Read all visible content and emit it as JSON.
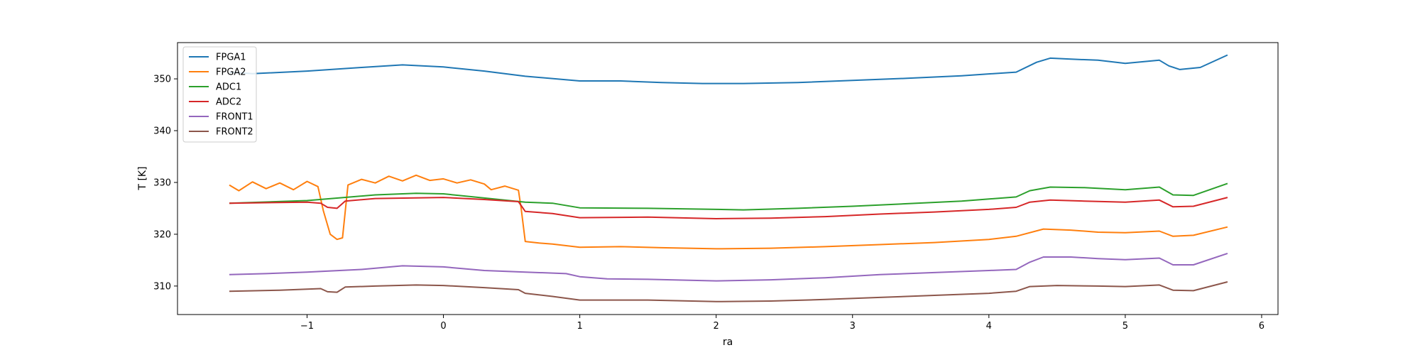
{
  "chart_data": {
    "type": "line",
    "title": "",
    "xlabel": "ra",
    "ylabel": "T [K]",
    "xlim": [
      -1.95,
      6.12
    ],
    "ylim": [
      304.5,
      357.0
    ],
    "xticks": [
      -1,
      0,
      1,
      2,
      3,
      4,
      5,
      6
    ],
    "yticks": [
      310,
      320,
      330,
      340,
      350
    ],
    "grid": false,
    "legend_position": "top-left",
    "series": [
      {
        "name": "FPGA1",
        "color": "#1f77b4",
        "x": [
          -1.57,
          -1.4,
          -1.0,
          -0.6,
          -0.3,
          0.0,
          0.3,
          0.6,
          1.0,
          1.3,
          1.6,
          1.9,
          2.2,
          2.6,
          3.0,
          3.4,
          3.8,
          4.2,
          4.35,
          4.45,
          4.6,
          4.8,
          5.0,
          5.25,
          5.32,
          5.4,
          5.55,
          5.75
        ],
        "y": [
          351.3,
          351.0,
          351.5,
          352.2,
          352.7,
          352.3,
          351.5,
          350.5,
          349.6,
          349.6,
          349.3,
          349.1,
          349.1,
          349.3,
          349.7,
          350.1,
          350.6,
          351.3,
          353.2,
          354.0,
          353.8,
          353.6,
          353.0,
          353.6,
          352.5,
          351.8,
          352.2,
          354.6
        ]
      },
      {
        "name": "FPGA2",
        "color": "#ff7f0e",
        "x": [
          -1.57,
          -1.5,
          -1.4,
          -1.3,
          -1.2,
          -1.1,
          -1.0,
          -0.92,
          -0.88,
          -0.83,
          -0.78,
          -0.74,
          -0.7,
          -0.6,
          -0.5,
          -0.4,
          -0.3,
          -0.2,
          -0.1,
          0.0,
          0.1,
          0.2,
          0.3,
          0.35,
          0.45,
          0.55,
          0.57,
          0.6,
          0.7,
          0.8,
          1.0,
          1.3,
          1.6,
          2.0,
          2.4,
          2.8,
          3.2,
          3.6,
          4.0,
          4.2,
          4.4,
          4.6,
          4.8,
          5.0,
          5.25,
          5.35,
          5.5,
          5.75
        ],
        "y": [
          329.5,
          328.4,
          330.1,
          328.8,
          329.9,
          328.6,
          330.2,
          329.2,
          324.5,
          320.0,
          319.0,
          319.3,
          329.5,
          330.6,
          329.9,
          331.2,
          330.3,
          331.4,
          330.4,
          330.7,
          329.9,
          330.5,
          329.7,
          328.6,
          329.3,
          328.5,
          325.0,
          318.6,
          318.3,
          318.1,
          317.5,
          317.6,
          317.4,
          317.2,
          317.3,
          317.6,
          318.0,
          318.4,
          319.0,
          319.6,
          321.0,
          320.8,
          320.4,
          320.3,
          320.6,
          319.6,
          319.8,
          321.4
        ]
      },
      {
        "name": "ADC1",
        "color": "#2ca02c",
        "x": [
          -1.57,
          -1.0,
          -0.5,
          -0.2,
          0.0,
          0.3,
          0.6,
          0.8,
          1.0,
          1.5,
          2.0,
          2.2,
          2.6,
          3.0,
          3.4,
          3.8,
          4.2,
          4.3,
          4.45,
          4.7,
          5.0,
          5.25,
          5.35,
          5.5,
          5.75
        ],
        "y": [
          326.0,
          326.5,
          327.6,
          327.9,
          327.8,
          327.0,
          326.2,
          326.0,
          325.1,
          325.0,
          324.8,
          324.7,
          325.0,
          325.4,
          325.9,
          326.4,
          327.2,
          328.4,
          329.1,
          329.0,
          328.6,
          329.1,
          327.6,
          327.5,
          329.8
        ]
      },
      {
        "name": "ADC2",
        "color": "#d62728",
        "x": [
          -1.57,
          -1.0,
          -0.9,
          -0.85,
          -0.78,
          -0.72,
          -0.5,
          0.0,
          0.3,
          0.55,
          0.6,
          0.8,
          1.0,
          1.5,
          2.0,
          2.4,
          2.8,
          3.2,
          3.6,
          4.0,
          4.2,
          4.3,
          4.45,
          4.7,
          5.0,
          5.25,
          5.35,
          5.5,
          5.75
        ],
        "y": [
          326.0,
          326.2,
          326.0,
          325.2,
          325.0,
          326.4,
          326.9,
          327.1,
          326.7,
          326.3,
          324.4,
          324.0,
          323.2,
          323.3,
          323.0,
          323.1,
          323.4,
          323.9,
          324.3,
          324.8,
          325.2,
          326.2,
          326.6,
          326.4,
          326.2,
          326.6,
          325.3,
          325.4,
          327.1
        ]
      },
      {
        "name": "FRONT1",
        "color": "#9467bd",
        "x": [
          -1.57,
          -1.3,
          -1.0,
          -0.6,
          -0.3,
          0.0,
          0.3,
          0.6,
          0.9,
          1.0,
          1.2,
          1.5,
          2.0,
          2.4,
          2.8,
          3.2,
          3.6,
          4.0,
          4.2,
          4.3,
          4.4,
          4.6,
          4.8,
          5.0,
          5.25,
          5.35,
          5.5,
          5.75
        ],
        "y": [
          312.2,
          312.4,
          312.7,
          313.2,
          313.9,
          313.7,
          313.0,
          312.7,
          312.4,
          311.8,
          311.4,
          311.3,
          311.0,
          311.2,
          311.6,
          312.2,
          312.6,
          313.0,
          313.2,
          314.6,
          315.6,
          315.6,
          315.3,
          315.1,
          315.4,
          314.1,
          314.1,
          316.3
        ]
      },
      {
        "name": "FRONT2",
        "color": "#8c564b",
        "x": [
          -1.57,
          -1.2,
          -0.9,
          -0.85,
          -0.78,
          -0.72,
          -0.5,
          -0.2,
          0.0,
          0.3,
          0.55,
          0.6,
          0.8,
          1.0,
          1.5,
          2.0,
          2.4,
          2.8,
          3.2,
          3.6,
          4.0,
          4.2,
          4.3,
          4.5,
          4.8,
          5.0,
          5.25,
          5.35,
          5.5,
          5.75
        ],
        "y": [
          309.0,
          309.2,
          309.5,
          308.9,
          308.8,
          309.8,
          310.0,
          310.2,
          310.1,
          309.7,
          309.3,
          308.6,
          308.0,
          307.3,
          307.3,
          307.0,
          307.1,
          307.4,
          307.8,
          308.2,
          308.6,
          309.0,
          309.9,
          310.1,
          310.0,
          309.9,
          310.2,
          309.2,
          309.1,
          310.8
        ]
      }
    ]
  }
}
